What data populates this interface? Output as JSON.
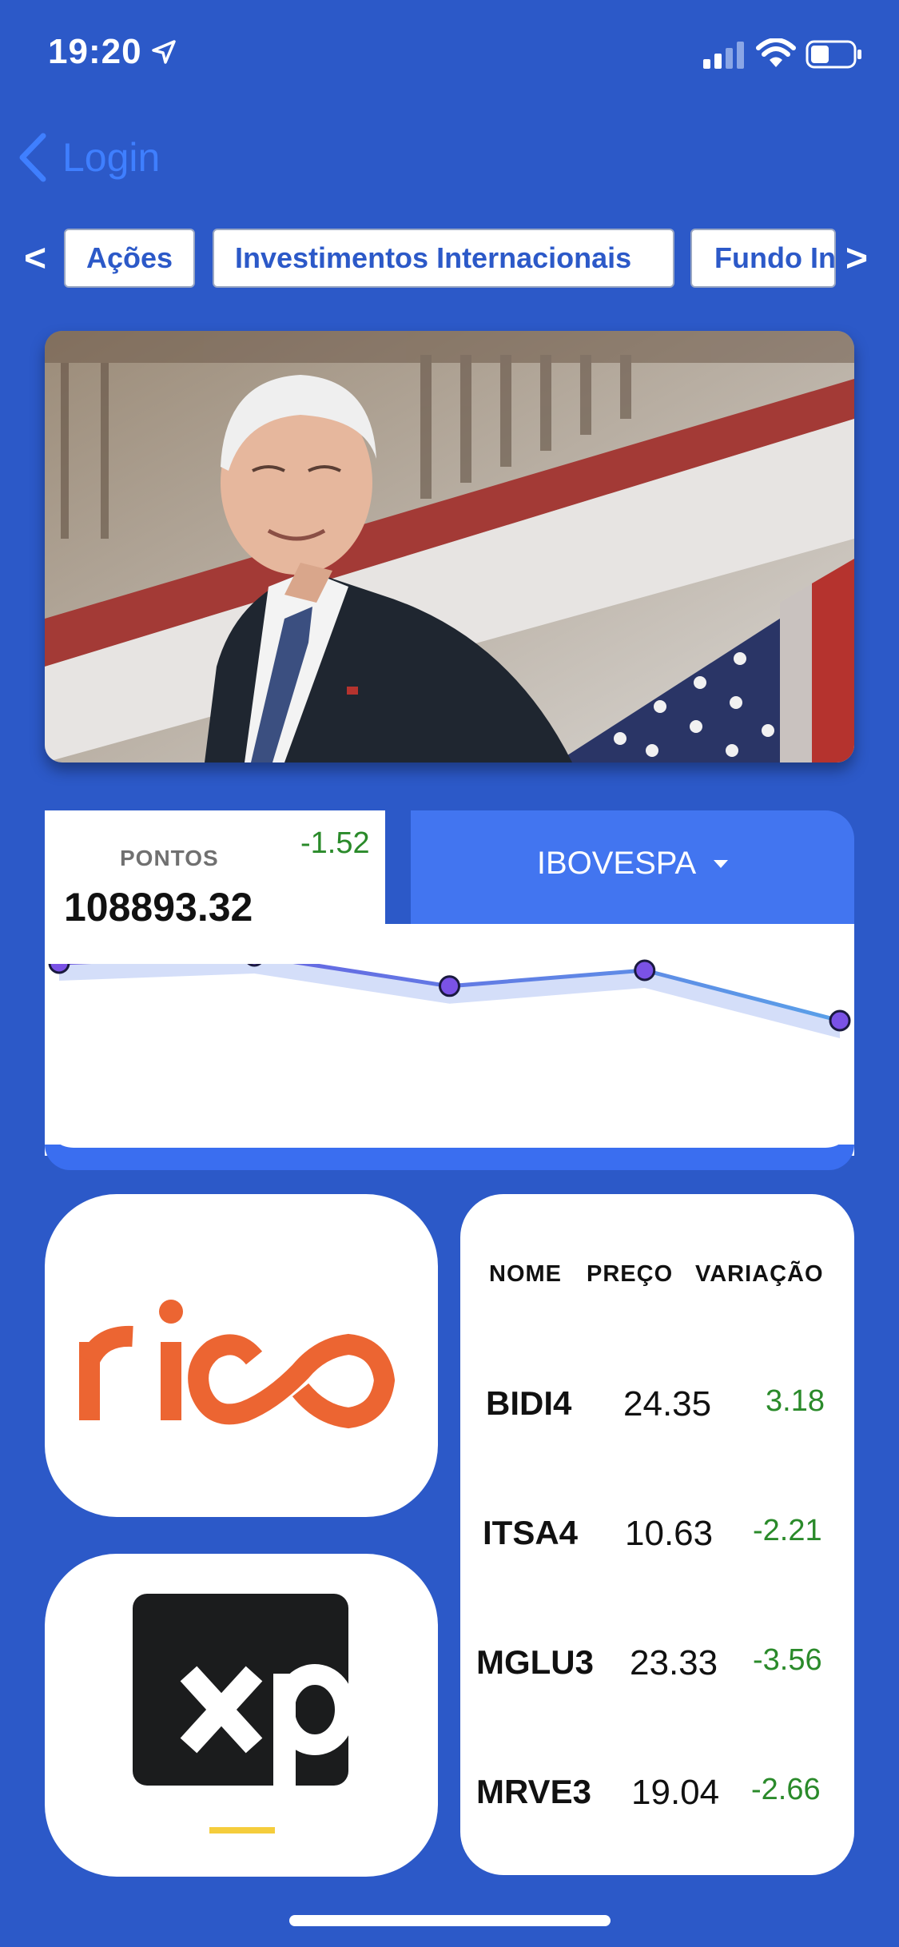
{
  "status_bar": {
    "time": "19:20",
    "icons": [
      "location-arrow-icon",
      "signal-icon",
      "wifi-icon",
      "battery-icon"
    ]
  },
  "nav": {
    "back_label": "Login"
  },
  "tabs": {
    "prev": "<",
    "next": ">",
    "items": [
      {
        "label": "Ações"
      },
      {
        "label": "Investimentos Internacionais"
      },
      {
        "label": "Fundo In"
      }
    ]
  },
  "index": {
    "points_label": "PONTOS",
    "points_value": "108893.32",
    "change": "-1.52",
    "selected": "IBOVESPA",
    "chart_line_values": [
      0.9,
      1.0,
      0.58,
      0.8,
      0.1
    ]
  },
  "brokers": [
    {
      "name": "rico"
    },
    {
      "name": "xp"
    }
  ],
  "stocks": {
    "headers": {
      "name": "NOME",
      "price": "PREÇO",
      "change": "VARIAÇÃO"
    },
    "rows": [
      {
        "name": "BIDI4",
        "price": "24.35",
        "change": "3.18"
      },
      {
        "name": "ITSA4",
        "price": "10.63",
        "change": "-2.21"
      },
      {
        "name": "MGLU3",
        "price": "23.33",
        "change": "-3.56"
      },
      {
        "name": "MRVE3",
        "price": "19.04",
        "change": "-2.66"
      }
    ]
  },
  "colors": {
    "background": "#2c59c8",
    "accent": "#4275f0",
    "positive": "#2a8a2a",
    "rico_orange": "#ec6532",
    "xp_yellow": "#f5cd3c"
  }
}
